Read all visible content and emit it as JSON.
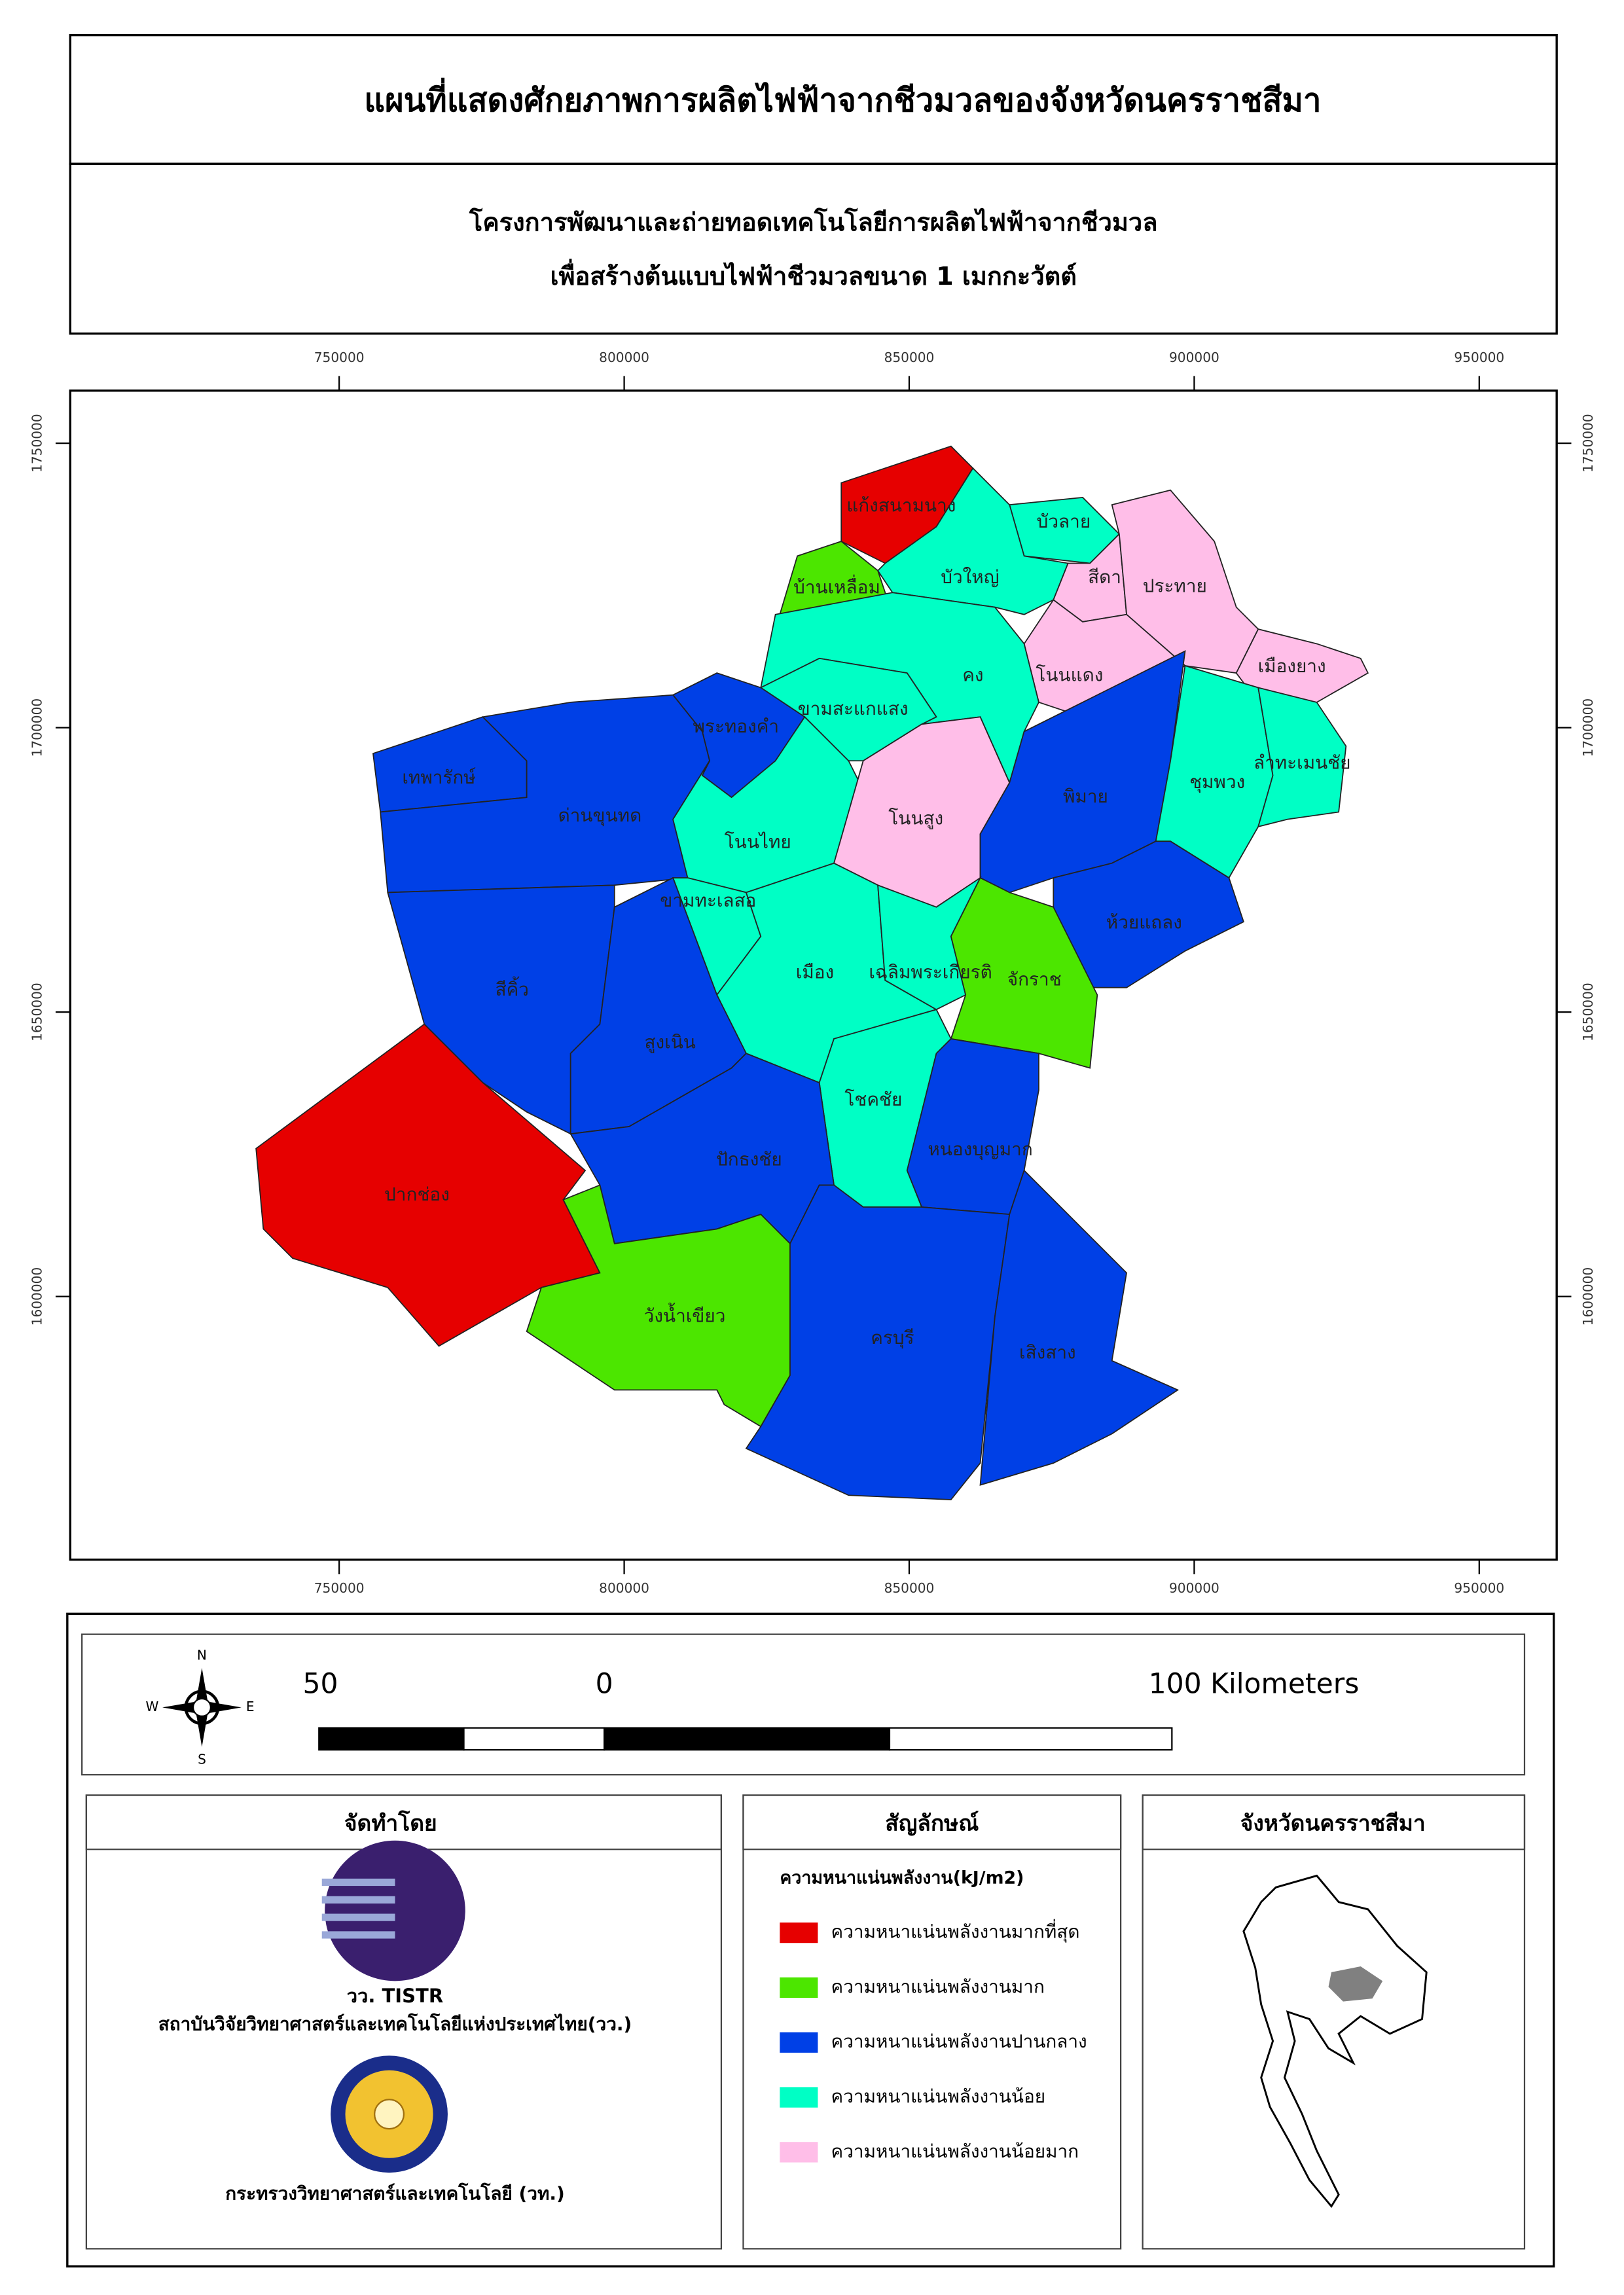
{
  "header": {
    "title": "แผนที่แสดงศักยภาพการผลิตไฟฟ้าจากชีวมวลของจังหวัดนครราชสีมา",
    "subtitle": [
      "โครงการพัฒนาและถ่ายทอดเทคโนโลยีการผลิตไฟฟ้าจากชีวมวล",
      "เพื่อสร้างต้นแบบไฟฟ้าชีวมวลขนาด 1 เมกกะวัตต์"
    ]
  },
  "map": {
    "xlim": [
      702821,
      963590
    ],
    "ylim": [
      1553730,
      1759250
    ],
    "xticks": [
      750000,
      800000,
      850000,
      900000,
      950000
    ],
    "yticks": [
      1600000,
      1650000,
      1700000,
      1750000
    ],
    "districts": [
      {
        "name": "แก้งสนามนาง",
        "class": 0
      },
      {
        "name": "บ้านเหลื่อม",
        "class": 1
      },
      {
        "name": "บัวลาย",
        "class": 3
      },
      {
        "name": "บัวใหญ่",
        "class": 3
      },
      {
        "name": "สีดา",
        "class": 4
      },
      {
        "name": "ประทาย",
        "class": 4
      },
      {
        "name": "โนนแดง",
        "class": 4
      },
      {
        "name": "เมืองยาง",
        "class": 4
      },
      {
        "name": "คง",
        "class": 3
      },
      {
        "name": "ขามสะแกแสง",
        "class": 3
      },
      {
        "name": "พระทองคำ",
        "class": 2
      },
      {
        "name": "เทพารักษ์",
        "class": 2
      },
      {
        "name": "ด่านขุนทด",
        "class": 2
      },
      {
        "name": "โนนไทย",
        "class": 3
      },
      {
        "name": "โนนสูง",
        "class": 4
      },
      {
        "name": "พิมาย",
        "class": 2
      },
      {
        "name": "ชุมพวง",
        "class": 3
      },
      {
        "name": "ลำทะเมนชัย",
        "class": 3
      },
      {
        "name": "ห้วยแถลง",
        "class": 2
      },
      {
        "name": "ขามทะเลสอ",
        "class": 3
      },
      {
        "name": "เมือง",
        "class": 3
      },
      {
        "name": "เฉลิมพระเกียรติ",
        "class": 3
      },
      {
        "name": "จักราช",
        "class": 1
      },
      {
        "name": "สีคิ้ว",
        "class": 2
      },
      {
        "name": "สูงเนิน",
        "class": 2
      },
      {
        "name": "โชคชัย",
        "class": 3
      },
      {
        "name": "หนองบุญมาก",
        "class": 2
      },
      {
        "name": "ปักธงชัย",
        "class": 2
      },
      {
        "name": "ปากช่อง",
        "class": 0
      },
      {
        "name": "วังน้ำเขียว",
        "class": 1
      },
      {
        "name": "ครบุรี",
        "class": 2
      },
      {
        "name": "เสิงสาง",
        "class": 2
      }
    ]
  },
  "compass": {
    "n": "N",
    "s": "S",
    "e": "E",
    "w": "W"
  },
  "scale": {
    "left": "50",
    "mid": "0",
    "right": "100 Kilometers"
  },
  "credits": {
    "title": "จัดทำโดย",
    "logo_label": "วว. TISTR",
    "org1": "สถาบันวิจัยวิทยาศาสตร์และเทคโนโลยีแห่งประเทศไทย(วว.)",
    "org2": "กระทรวงวิทยาศาสตร์และเทคโนโลยี (วท.)"
  },
  "legend": {
    "title": "สัญลักษณ์",
    "subtitle": "ความหนาแน่นพลังงาน(kJ/m2)",
    "items": [
      {
        "name": "ความหนาแน่นพลังงานมากที่สุด",
        "color": "#e60000"
      },
      {
        "name": "ความหนาแน่นพลังงานมาก",
        "color": "#4ce600"
      },
      {
        "name": "ความหนาแน่นพลังงานปานกลาง",
        "color": "#0040e6"
      },
      {
        "name": "ความหนาแน่นพลังงานน้อย",
        "color": "#00ffc5"
      },
      {
        "name": "ความหนาแน่นพลังงานน้อยมาก",
        "color": "#ffbee8"
      }
    ]
  },
  "inset": {
    "title": "จังหวัดนครราชสีมา"
  }
}
